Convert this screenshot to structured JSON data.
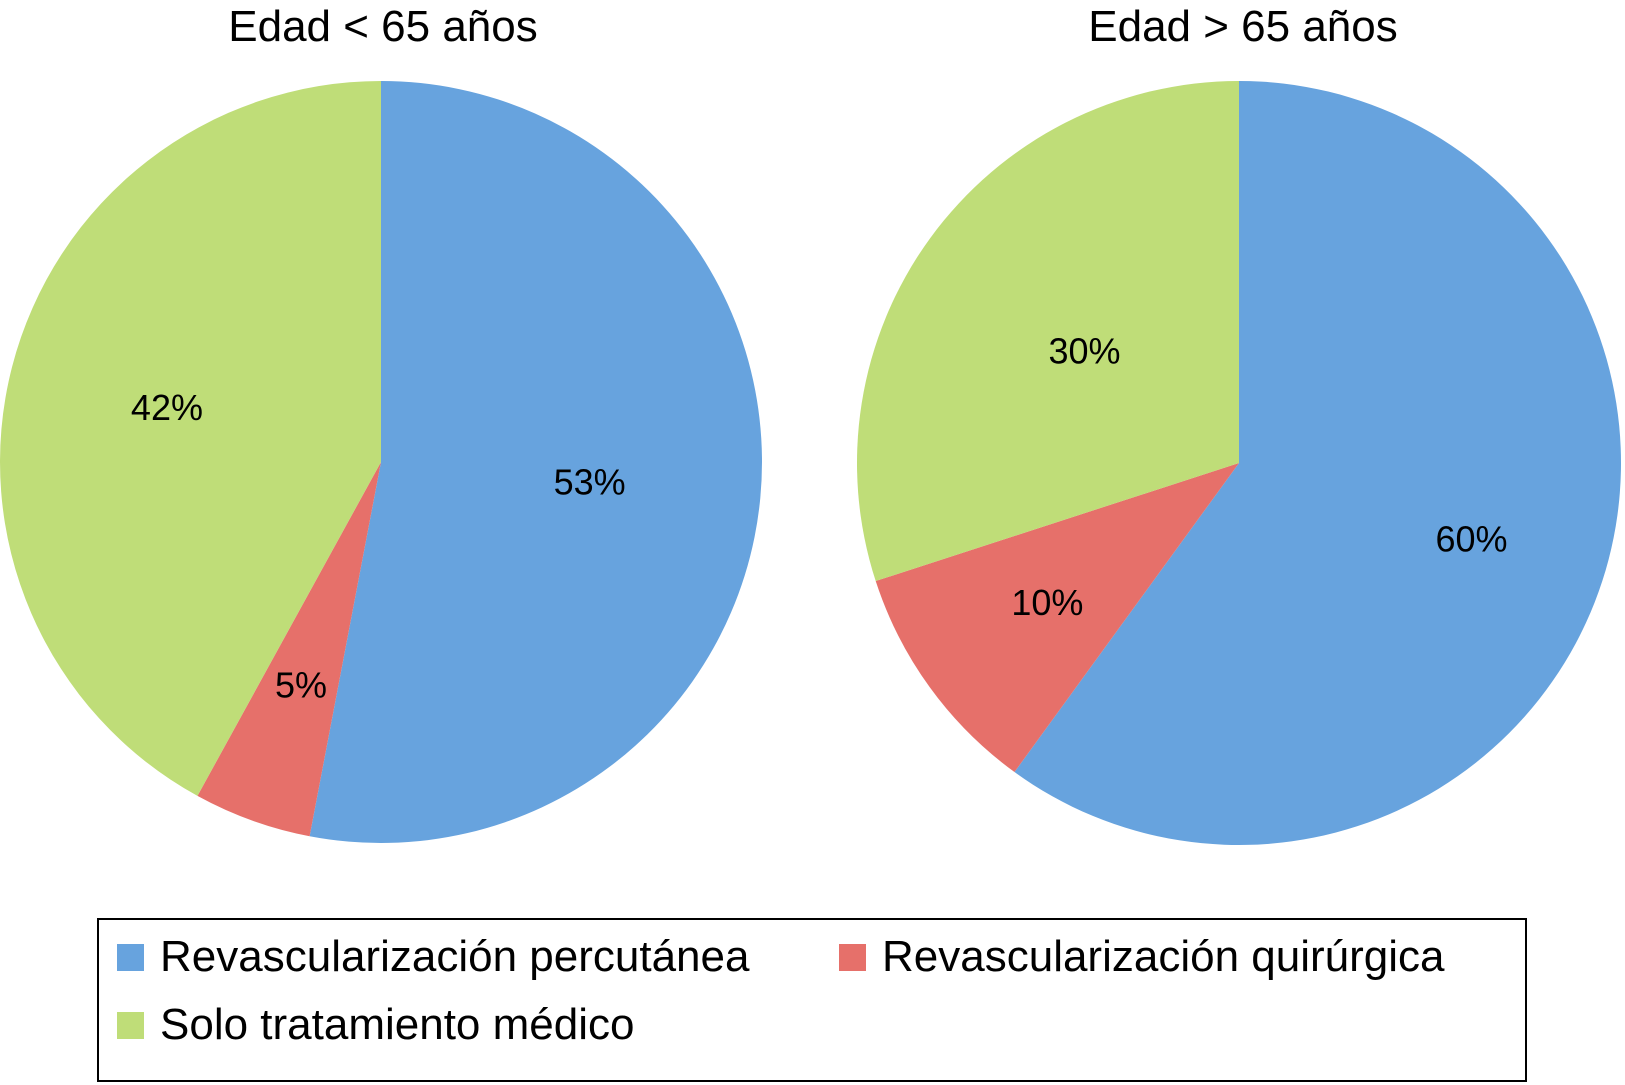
{
  "chart_data": [
    {
      "type": "pie",
      "title": "Edad < 65 años",
      "categories": [
        "Revascularización percutánea",
        "Revascularización quirúrgica",
        "Solo tratamiento médico"
      ],
      "values": [
        53,
        5,
        42
      ],
      "labels": [
        "53%",
        "5%",
        "42%"
      ],
      "colors": [
        "#67a3de",
        "#e6706a",
        "#bfdd78"
      ],
      "start": "12 o'clock",
      "direction": "clockwise"
    },
    {
      "type": "pie",
      "title": "Edad > 65 años",
      "categories": [
        "Revascularización percutánea",
        "Revascularización quirúrgica",
        "Solo tratamiento médico"
      ],
      "values": [
        60,
        10,
        30
      ],
      "labels": [
        "60%",
        "10%",
        "30%"
      ],
      "colors": [
        "#67a3de",
        "#e6706a",
        "#bfdd78"
      ],
      "start": "12 o'clock",
      "direction": "clockwise"
    }
  ],
  "legend": {
    "placement": "bottom",
    "items": [
      {
        "label": "Revascularización percutánea",
        "color": "#67a3de"
      },
      {
        "label": "Revascularización quirúrgica",
        "color": "#e6706a"
      },
      {
        "label": "Solo tratamiento médico",
        "color": "#bfdd78"
      }
    ]
  }
}
